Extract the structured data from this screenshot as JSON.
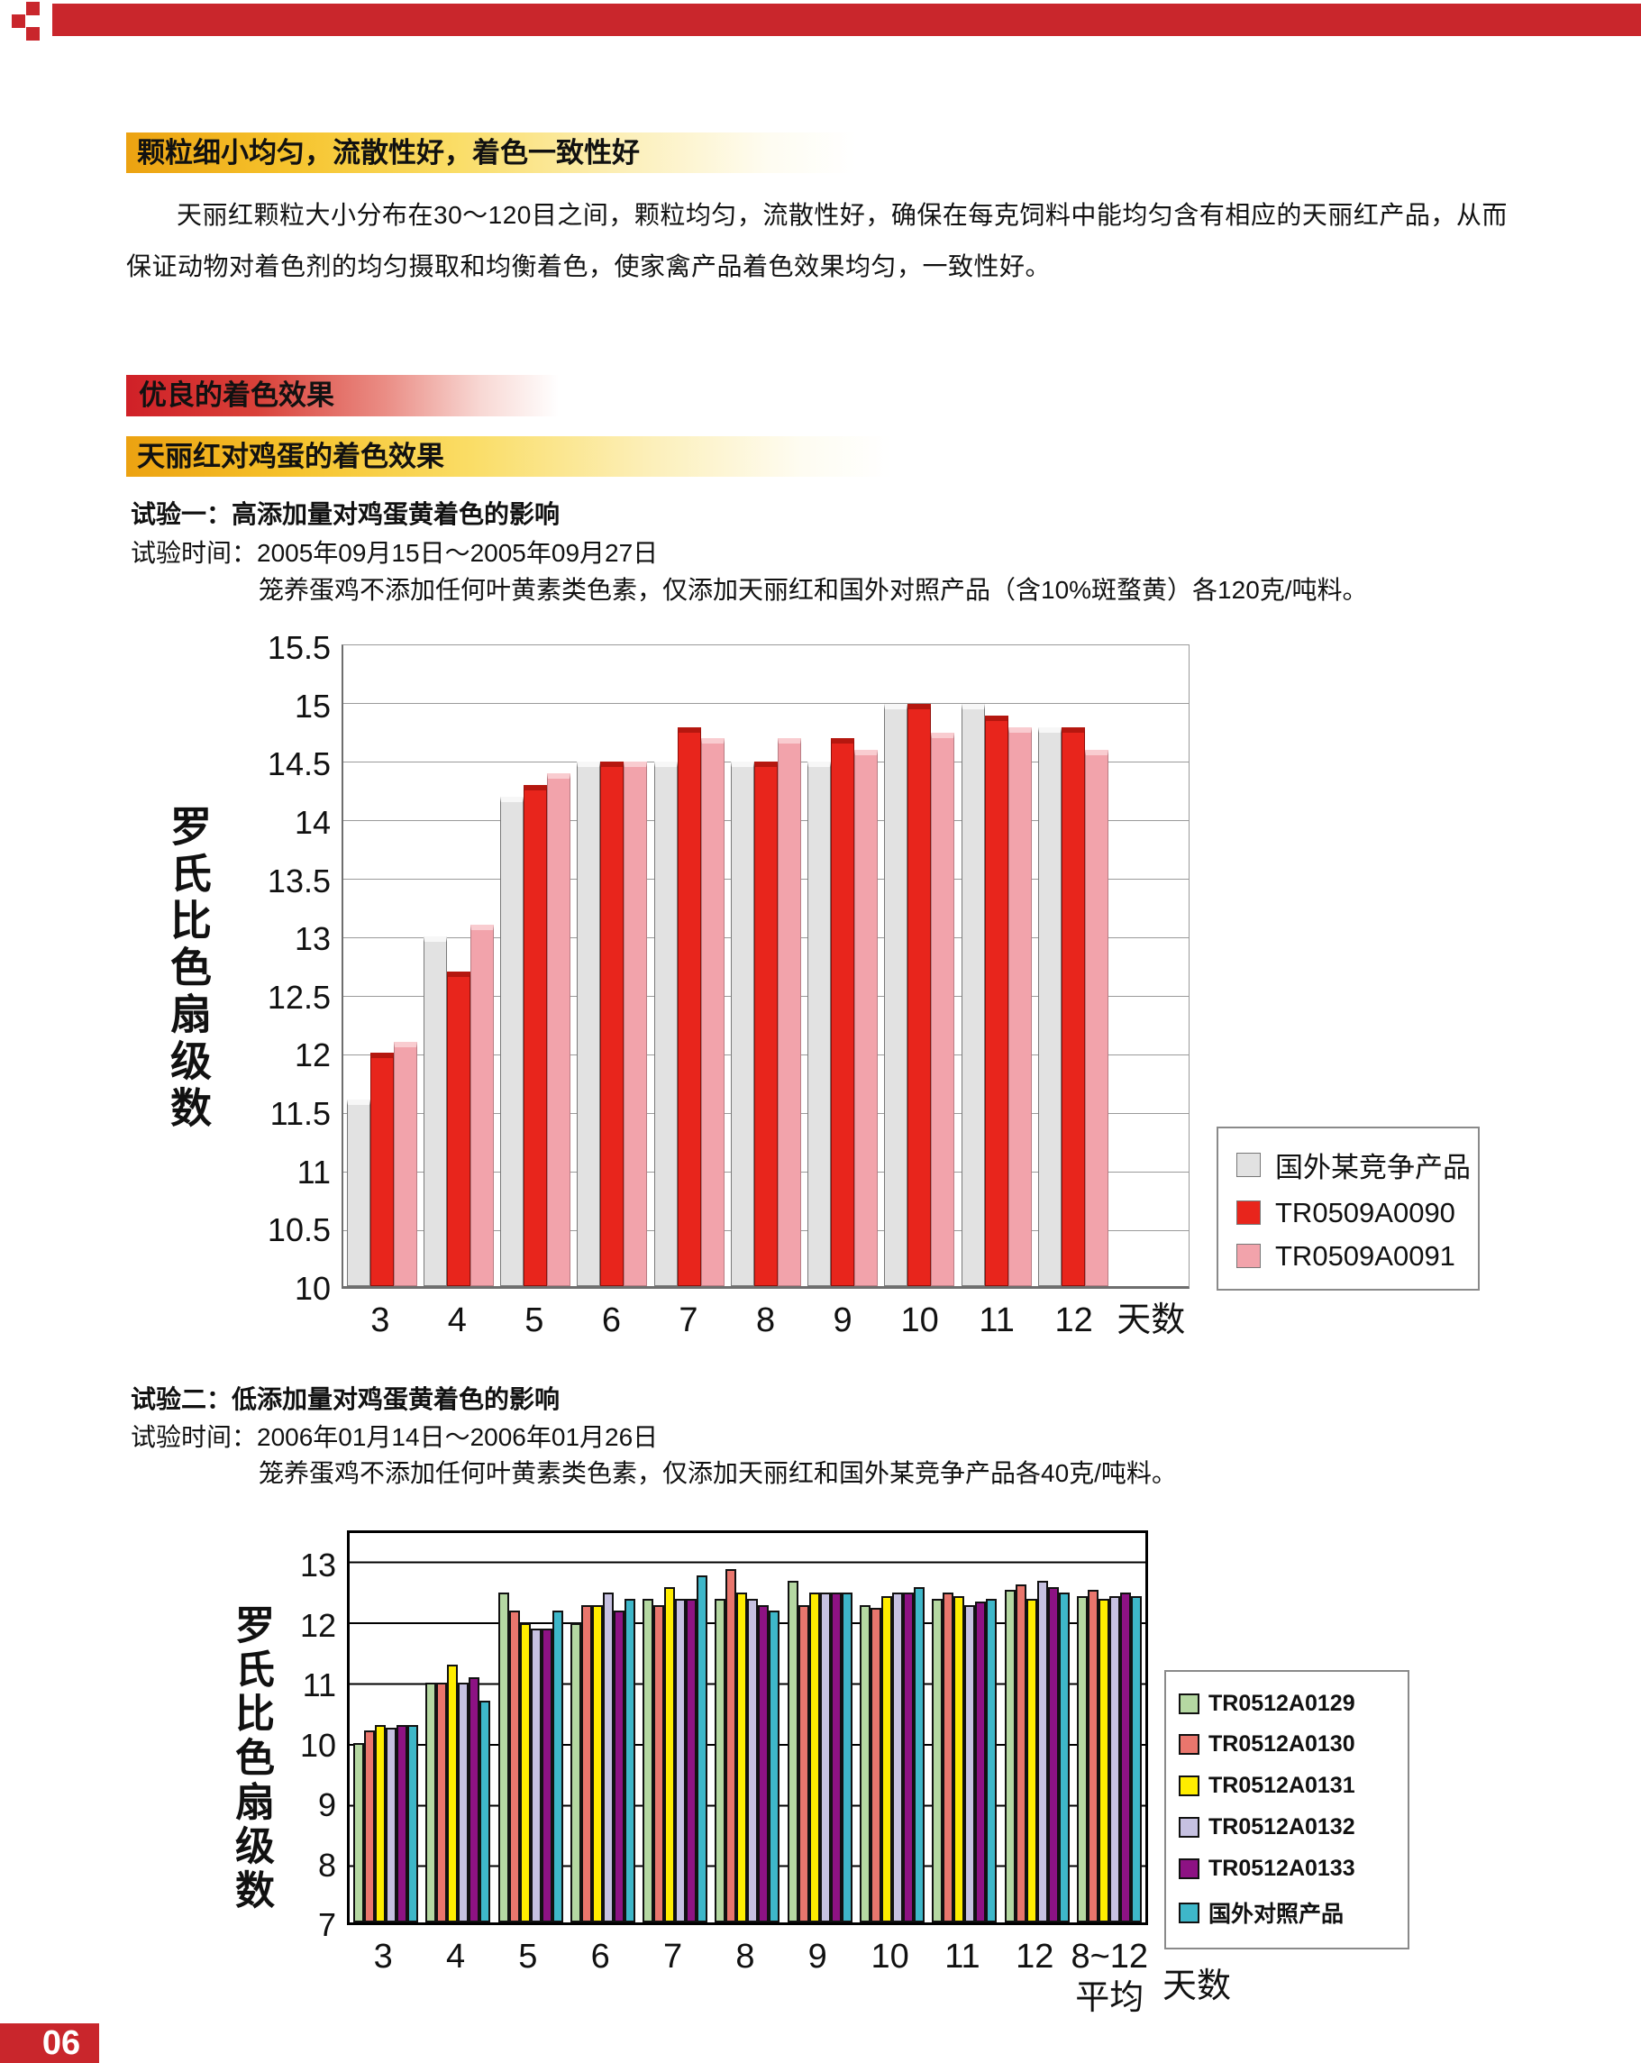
{
  "header": {
    "brand_color": "#c9262c"
  },
  "sections": {
    "granule": {
      "heading": "颗粒细小均匀，流散性好，着色一致性好",
      "body": "天丽红颗粒大小分布在30～120目之间，颗粒均匀，流散性好，确保在每克饲料中能均匀含有相应的天丽红产品，从而保证动物对着色剂的均匀摄取和均衡着色，使家禽产品着色效果均匀，一致性好。"
    },
    "coloring_effect": {
      "heading": "优良的着色效果"
    },
    "egg_effect": {
      "heading": "天丽红对鸡蛋的着色效果"
    },
    "exp1": {
      "title": "试验一：高添加量对鸡蛋黄着色的影响",
      "time": "试验时间：2005年09月15日～2005年09月27日",
      "desc": "笼养蛋鸡不添加任何叶黄素类色素，仅添加天丽红和国外对照产品（含10%斑蝥黄）各120克/吨料。"
    },
    "exp2": {
      "title": "试验二：低添加量对鸡蛋黄着色的影响",
      "time": "试验时间：2006年01月14日～2006年01月26日",
      "desc": "笼养蛋鸡不添加任何叶黄素类色素，仅添加天丽红和国外某竞争产品各40克/吨料。"
    }
  },
  "chart_data": [
    {
      "type": "bar",
      "title": "",
      "ylabel": "罗氏比色扇级数",
      "xlabel": "天数",
      "ylim": [
        10,
        15.5
      ],
      "ytick_step": 0.5,
      "grid": true,
      "legend_position": "right",
      "categories": [
        "3",
        "4",
        "5",
        "6",
        "7",
        "8",
        "9",
        "10",
        "11",
        "12"
      ],
      "series": [
        {
          "name": "国外某竞争产品",
          "color": "#e2e2e2",
          "cap": "#f7f7f7",
          "border": "#7a7a7a",
          "values": [
            11.6,
            13.0,
            14.2,
            14.5,
            14.5,
            14.5,
            14.5,
            15.0,
            15.0,
            14.8
          ]
        },
        {
          "name": "TR0509A0090",
          "color": "#e8251c",
          "cap": "#b5170f",
          "border": "#8f0f0a",
          "values": [
            12.0,
            12.7,
            14.3,
            14.5,
            14.8,
            14.5,
            14.7,
            15.0,
            14.9,
            14.8
          ]
        },
        {
          "name": "TR0509A0091",
          "color": "#f2a3ab",
          "cap": "#f9ccd0",
          "border": "#b87d84",
          "values": [
            12.1,
            13.1,
            14.4,
            14.5,
            14.7,
            14.7,
            14.6,
            14.75,
            14.8,
            14.6
          ]
        }
      ]
    },
    {
      "type": "bar",
      "title": "",
      "ylabel": "罗氏比色扇级数",
      "xlabel": "天数",
      "ylim": [
        7,
        13.5
      ],
      "ytick_step": 1,
      "ytick_max": 13,
      "grid": true,
      "legend_position": "right",
      "categories": [
        "3",
        "4",
        "5",
        "6",
        "7",
        "8",
        "9",
        "10",
        "11",
        "12",
        "8~12\n平均"
      ],
      "series": [
        {
          "name": "TR0512A0129",
          "color": "#b5d8a2",
          "values": [
            10.0,
            11.0,
            12.5,
            12.0,
            12.4,
            12.4,
            12.7,
            12.3,
            12.4,
            12.55,
            12.45
          ]
        },
        {
          "name": "TR0512A0130",
          "color": "#e9766d",
          "values": [
            10.2,
            11.0,
            12.2,
            12.3,
            12.3,
            12.9,
            12.3,
            12.25,
            12.5,
            12.65,
            12.55
          ]
        },
        {
          "name": "TR0512A0131",
          "color": "#ffed00",
          "values": [
            10.3,
            11.3,
            12.0,
            12.3,
            12.6,
            12.5,
            12.5,
            12.45,
            12.45,
            12.4,
            12.4
          ]
        },
        {
          "name": "TR0512A0132",
          "color": "#c6c1e1",
          "values": [
            10.25,
            11.0,
            11.9,
            12.5,
            12.4,
            12.4,
            12.5,
            12.5,
            12.3,
            12.7,
            12.45
          ]
        },
        {
          "name": "TR0512A0133",
          "color": "#8d1283",
          "values": [
            10.3,
            11.1,
            11.9,
            12.2,
            12.4,
            12.3,
            12.5,
            12.5,
            12.35,
            12.6,
            12.5
          ]
        },
        {
          "name": "国外对照产品",
          "color": "#3eb7c9",
          "values": [
            10.3,
            10.7,
            12.2,
            12.4,
            12.8,
            12.2,
            12.5,
            12.6,
            12.4,
            12.5,
            12.45
          ]
        }
      ]
    }
  ],
  "page": {
    "number": "06"
  }
}
